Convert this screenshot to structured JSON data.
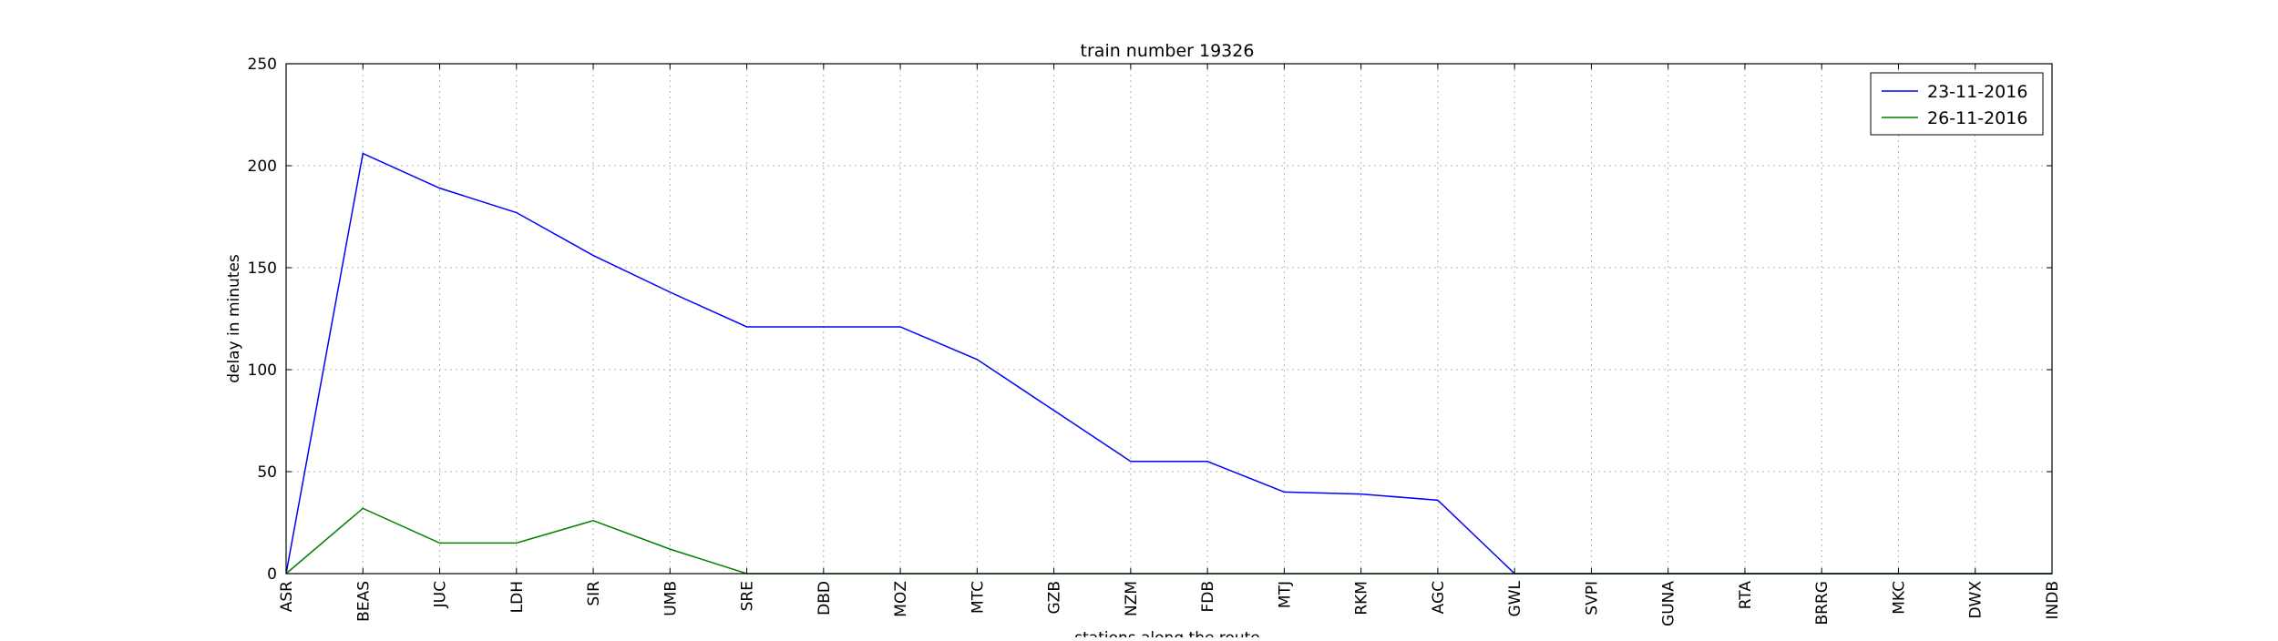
{
  "chart_data": {
    "type": "line",
    "title": "train number 19326",
    "xlabel": "stations along the route",
    "ylabel": "delay in minutes",
    "categories": [
      "ASR",
      "BEAS",
      "JUC",
      "LDH",
      "SIR",
      "UMB",
      "SRE",
      "DBD",
      "MOZ",
      "MTC",
      "GZB",
      "NZM",
      "FDB",
      "MTJ",
      "RKM",
      "AGC",
      "GWL",
      "SVPI",
      "GUNA",
      "RTA",
      "BRRG",
      "MKC",
      "DWX",
      "INDB"
    ],
    "ylim": [
      0,
      250
    ],
    "yticks": [
      0,
      50,
      100,
      150,
      200,
      250
    ],
    "grid": true,
    "legend_position": "top-right",
    "series": [
      {
        "name": "23-11-2016",
        "color": "#0000ff",
        "values": [
          0,
          206,
          189,
          177,
          156,
          138,
          121,
          121,
          121,
          105,
          80,
          55,
          55,
          40,
          39,
          36,
          0,
          0,
          0,
          0,
          0,
          0,
          0,
          0
        ]
      },
      {
        "name": "26-11-2016",
        "color": "#008000",
        "values": [
          0,
          32,
          15,
          15,
          26,
          12,
          0,
          0,
          0,
          0,
          0,
          0,
          0,
          0,
          0,
          0,
          0,
          0,
          0,
          0,
          0,
          0,
          0,
          0
        ]
      }
    ]
  }
}
